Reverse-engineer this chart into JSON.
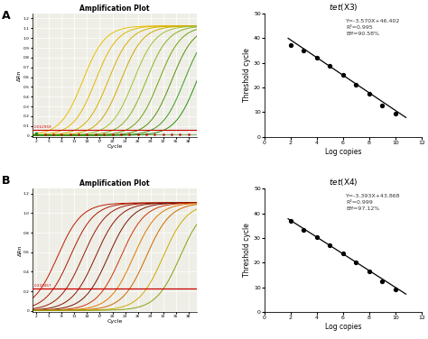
{
  "panel_A_title": "Amplification Plot",
  "panel_B_title": "Amplification Plot",
  "scatter_A_title": "tet(X3)",
  "scatter_B_title": "tet(X4)",
  "scatter_A_eq": "Y=-3.570X+46.402",
  "scatter_A_r2": "R²=0.995",
  "scatter_A_eff": "Eff=90.58%",
  "scatter_B_eq": "Y=-3.393X+43.868",
  "scatter_B_r2": "R²=0.999",
  "scatter_B_eff": "Eff=97.12%",
  "scatter_A_x": [
    2,
    3,
    4,
    5,
    6,
    7,
    8,
    9,
    10
  ],
  "scatter_A_y": [
    37.2,
    35.0,
    32.0,
    28.7,
    25.0,
    21.2,
    17.3,
    12.8,
    9.5
  ],
  "scatter_B_x": [
    2,
    3,
    4,
    5,
    6,
    7,
    8,
    9,
    10
  ],
  "scatter_B_y": [
    37.0,
    33.2,
    30.4,
    27.0,
    23.6,
    20.0,
    16.5,
    12.5,
    9.0
  ],
  "amp_A_threshold": 0.062,
  "amp_B_threshold": 0.232,
  "amp_A_threshold_label": "0.062959",
  "amp_B_threshold_label": "0.232457",
  "xlabel_amp": "Cycle",
  "ylabel_amp": "ΔRn",
  "xlabel_scatter": "Log copies",
  "ylabel_scatter": "Threshold cycle",
  "bg_color": "#eeeee6",
  "grid_color": "#ffffff",
  "midpoints_A": [
    13,
    16,
    19,
    22,
    25,
    28,
    31,
    34,
    37,
    40
  ],
  "midpoints_B": [
    7,
    10,
    13,
    16,
    19,
    22,
    25,
    28,
    32,
    36
  ],
  "colors_A": [
    "#e8c000",
    "#e0b800",
    "#d4b000",
    "#cca800",
    "#a0c030",
    "#88b020",
    "#70a010",
    "#58900a",
    "#409820",
    "#289010"
  ],
  "colors_B_red": [
    "#bb1a00",
    "#aa1800",
    "#991600",
    "#881400",
    "#771200",
    "#cc3300"
  ],
  "colors_B_orange": [
    "#dd7700",
    "#cc6600"
  ],
  "colors_B_yellow": [
    "#ccaa00",
    "#88a010"
  ],
  "scatter_m_A": -3.57,
  "scatter_b_A": 46.402,
  "scatter_m_B": -3.393,
  "scatter_b_B": 43.868
}
